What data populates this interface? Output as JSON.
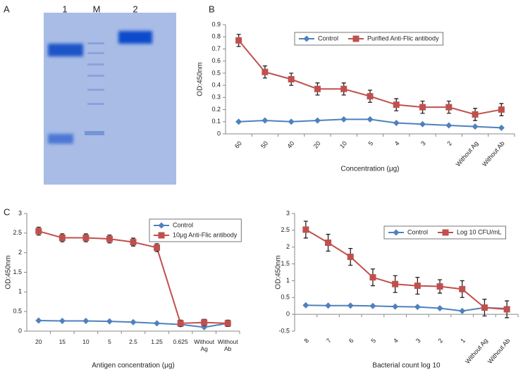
{
  "gel": {
    "label": "A",
    "lanes": [
      "1",
      "M",
      "2"
    ]
  },
  "chart_data": [
    {
      "type": "line",
      "panel": "B",
      "ylabel": "OD:450nm",
      "xlabel": "Concentration (μg)",
      "categories": [
        "60",
        "50",
        "40",
        "20",
        "10",
        "5",
        "4",
        "3",
        "2",
        "Without Ag",
        "Without Ab"
      ],
      "ylim": [
        0,
        0.9
      ],
      "yticks": [
        0,
        0.1,
        0.2,
        0.3,
        0.4,
        0.5,
        0.6,
        0.7,
        0.8,
        0.9
      ],
      "legend": "upper center",
      "rotate_labels": true,
      "series": [
        {
          "name": "Control",
          "color": "#4f81bd",
          "marker": "diamond",
          "values": [
            0.1,
            0.11,
            0.1,
            0.11,
            0.12,
            0.12,
            0.09,
            0.08,
            0.07,
            0.06,
            0.05
          ]
        },
        {
          "name": "Purified Anti-Flic antibody",
          "color": "#c0504d",
          "marker": "square",
          "values": [
            0.77,
            0.51,
            0.45,
            0.37,
            0.37,
            0.31,
            0.24,
            0.22,
            0.22,
            0.16,
            0.2
          ],
          "errors": [
            0.05,
            0.05,
            0.05,
            0.05,
            0.05,
            0.05,
            0.05,
            0.05,
            0.05,
            0.05,
            0.05
          ]
        }
      ]
    },
    {
      "type": "line",
      "panel": "C",
      "ylabel": "OD:450nm",
      "xlabel": "Antigen concentration (μg)",
      "categories": [
        "20",
        "15",
        "10",
        "5",
        "2.5",
        "1.25",
        "0.625",
        "Without Ag",
        "Without Ab"
      ],
      "ylim": [
        0,
        3
      ],
      "yticks": [
        0,
        0.5,
        1,
        1.5,
        2,
        2.5,
        3
      ],
      "legend": "upper right",
      "rotate_labels": false,
      "series": [
        {
          "name": "Control",
          "color": "#4f81bd",
          "marker": "diamond",
          "values": [
            0.27,
            0.26,
            0.26,
            0.25,
            0.23,
            0.2,
            0.17,
            0.1,
            0.2
          ]
        },
        {
          "name": "10μg Anti-Flic antibody",
          "color": "#c0504d",
          "marker": "square",
          "values": [
            2.55,
            2.38,
            2.38,
            2.35,
            2.27,
            2.13,
            0.2,
            0.22,
            0.2
          ],
          "errors": [
            0.1,
            0.1,
            0.1,
            0.1,
            0.1,
            0.1,
            0.08,
            0.08,
            0.08
          ]
        }
      ]
    },
    {
      "type": "line",
      "ylabel": "OD:450nm",
      "xlabel": "Bacterial count log 10",
      "categories": [
        "8",
        "7",
        "6",
        "5",
        "4",
        "3",
        "2",
        "1",
        "Without Ag",
        "Without Ab"
      ],
      "ylim": [
        -0.5,
        3
      ],
      "yticks": [
        -0.5,
        0,
        0.5,
        1,
        1.5,
        2,
        2.5,
        3
      ],
      "legend": "upper center",
      "rotate_labels": true,
      "series": [
        {
          "name": "Control",
          "color": "#4f81bd",
          "marker": "diamond",
          "values": [
            0.27,
            0.26,
            0.26,
            0.25,
            0.23,
            0.22,
            0.18,
            0.1,
            0.2,
            0.17
          ]
        },
        {
          "name": "Log 10 CFU/mL",
          "color": "#c0504d",
          "marker": "square",
          "values": [
            2.52,
            2.13,
            1.71,
            1.1,
            0.9,
            0.85,
            0.83,
            0.75,
            0.2,
            0.15
          ],
          "errors": [
            0.25,
            0.25,
            0.25,
            0.25,
            0.25,
            0.25,
            0.2,
            0.25,
            0.25,
            0.25
          ]
        }
      ]
    }
  ]
}
